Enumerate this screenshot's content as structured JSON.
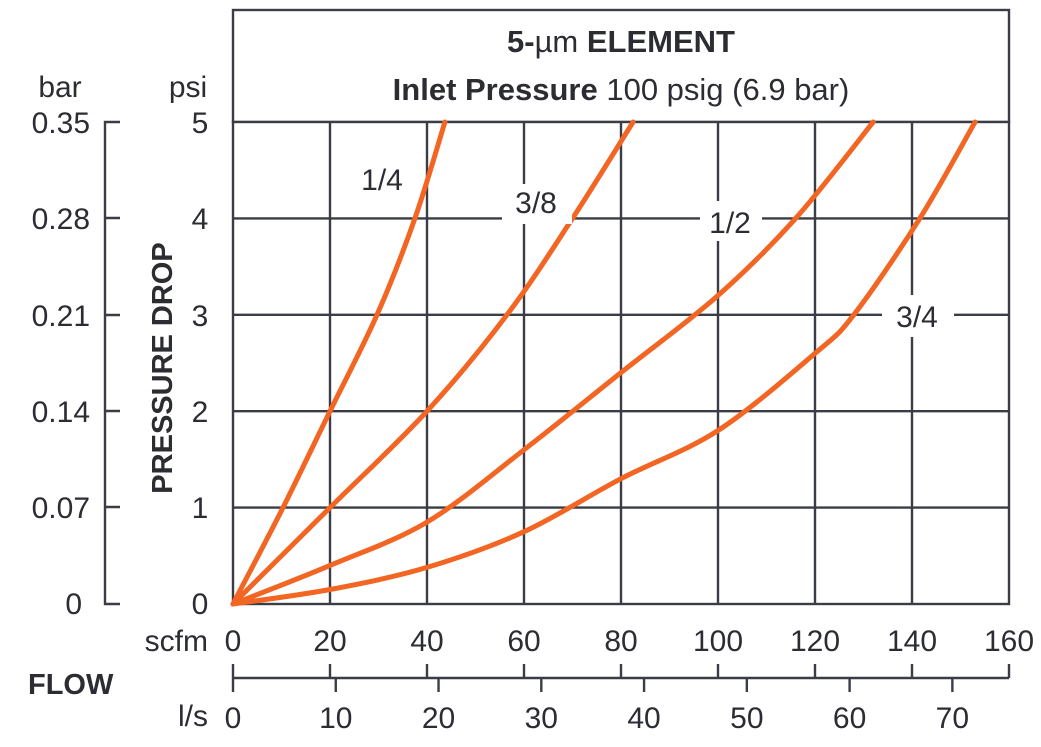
{
  "header": {
    "line1_prefix": "5-",
    "line1_mu": "µm",
    "line1_bold": "ELEMENT",
    "line2_bold": "Inlet Pressure",
    "line2_rest": "100 psig (6.9 bar)"
  },
  "y_axis": {
    "title": "PRESSURE DROP",
    "psi_unit": "psi",
    "bar_unit": "bar",
    "psi_ticks": [
      "0",
      "1",
      "2",
      "3",
      "4",
      "5"
    ],
    "bar_ticks": [
      "0",
      "0.07",
      "0.14",
      "0.21",
      "0.28",
      "0.35"
    ]
  },
  "x_axis": {
    "title": "FLOW",
    "scfm_unit": "scfm",
    "ls_unit": "l/s",
    "scfm_ticks": [
      "0",
      "20",
      "40",
      "60",
      "80",
      "100",
      "120",
      "140",
      "160"
    ],
    "ls_ticks": [
      "0",
      "10",
      "20",
      "30",
      "40",
      "50",
      "60",
      "70"
    ]
  },
  "series_labels": [
    "1/4",
    "3/8",
    "1/2",
    "3/4"
  ],
  "colors": {
    "curve": "#f26522",
    "grid": "#3a3d45",
    "text": "#2b2d33"
  },
  "chart_data": {
    "type": "line",
    "title": "5-µm ELEMENT — Inlet Pressure 100 psig (6.9 bar)",
    "xlabel": "FLOW (scfm / l/s)",
    "ylabel": "PRESSURE DROP (psi / bar)",
    "xlim": [
      0,
      160
    ],
    "ylim": [
      0,
      5
    ],
    "x_unit": "scfm",
    "y_unit": "psi",
    "secondary_x": {
      "unit": "l/s",
      "ticks": [
        0,
        10,
        20,
        30,
        40,
        50,
        60,
        70
      ]
    },
    "secondary_y": {
      "unit": "bar",
      "ticks": [
        0,
        0.07,
        0.14,
        0.21,
        0.28,
        0.35
      ]
    },
    "grid": true,
    "legend_position": "inline labels on curves",
    "series": [
      {
        "name": "1/4",
        "x": [
          0,
          10.3,
          20,
          29.7,
          37.5,
          43.7
        ],
        "y": [
          0,
          1,
          2,
          3,
          4,
          5
        ]
      },
      {
        "name": "3/8",
        "x": [
          0,
          20,
          40,
          56.5,
          70,
          82.5
        ],
        "y": [
          0,
          1,
          2,
          3,
          4,
          5
        ]
      },
      {
        "name": "1/2",
        "x": [
          0,
          20,
          40,
          60,
          80,
          100,
          116,
          132
        ],
        "y": [
          0,
          0.4,
          0.85,
          1.6,
          2.4,
          3.2,
          4,
          5
        ]
      },
      {
        "name": "3/4",
        "x": [
          0,
          20,
          40,
          60,
          80,
          100,
          120,
          128,
          141.6,
          153
        ],
        "y": [
          0,
          0.15,
          0.38,
          0.75,
          1.3,
          1.8,
          2.6,
          3,
          4,
          5
        ]
      }
    ]
  }
}
